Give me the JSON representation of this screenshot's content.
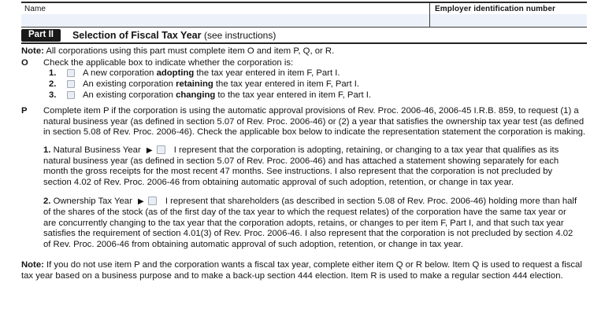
{
  "header": {
    "name_label": "Name",
    "ein_label": "Employer identification number"
  },
  "part_header": {
    "part_label": "Part II",
    "title": "Selection of Fiscal Tax Year",
    "subtitle": "(see instructions)"
  },
  "note_top": {
    "label": "Note:",
    "text": "All corporations using this part must complete item O and item P, Q, or R."
  },
  "item_o": {
    "letter": "O",
    "text": "Check the applicable box to indicate whether the corporation is:",
    "options": [
      {
        "number": "1.",
        "pre": "A new corporation ",
        "bold": "adopting",
        "post": " the tax year entered in item F, Part I."
      },
      {
        "number": "2.",
        "pre": "An existing corporation ",
        "bold": "retaining",
        "post": " the tax year entered in item F, Part I."
      },
      {
        "number": "3.",
        "pre": "An existing corporation ",
        "bold": "changing",
        "post": " to the tax year entered in item F, Part I."
      }
    ]
  },
  "item_p": {
    "letter": "P",
    "text": "Complete item P if the corporation is using the automatic approval provisions of Rev. Proc. 2006-46, 2006-45 I.R.B. 859, to request (1) a natural business year (as defined in section 5.07 of Rev. Proc. 2006-46) or (2) a year that satisfies the ownership tax year test (as defined in section 5.08 of Rev. Proc. 2006-46). Check the applicable box below to indicate the representation statement the corporation is making.",
    "sub1": {
      "number": "1.",
      "title": "Natural Business Year",
      "arrow": "▶",
      "text": "I represent that the corporation is adopting, retaining, or changing to a tax year that qualifies as its natural business year (as defined in section 5.07 of Rev. Proc. 2006-46) and has attached a statement showing separately for each month the gross receipts for the most recent 47 months. See instructions. I also represent that the corporation is not precluded by section 4.02 of Rev. Proc. 2006-46 from obtaining automatic approval of such adoption, retention, or change in tax year."
    },
    "sub2": {
      "number": "2.",
      "title": "Ownership Tax Year",
      "arrow": "▶",
      "text": "I represent that shareholders (as described in section 5.08 of Rev. Proc. 2006-46) holding more than half of the shares of the stock (as of the first day of the tax year to which the request relates) of the corporation have the same tax year or are concurrently changing to the tax year that the corporation adopts, retains, or changes to per item F, Part I, and that such tax year satisfies the requirement of section 4.01(3) of Rev. Proc. 2006-46. I also represent that the corporation is not precluded by section 4.02 of Rev. Proc. 2006-46 from obtaining automatic approval of such adoption, retention, or change in tax year."
    }
  },
  "note_bottom": {
    "label": "Note:",
    "text": "If you do not use item P and the corporation wants a fiscal tax year, complete either item Q or R below. Item Q is used to request a fiscal tax year based on a business purpose and to make a back-up section 444 election. Item R is used to make a regular section 444 election."
  },
  "colors": {
    "field_fill": "#edf1fa",
    "checkbox_fill": "#e9eef6",
    "checkbox_border": "#a3aab3",
    "badge_bg": "#181818",
    "border": "#2a2a2a"
  }
}
